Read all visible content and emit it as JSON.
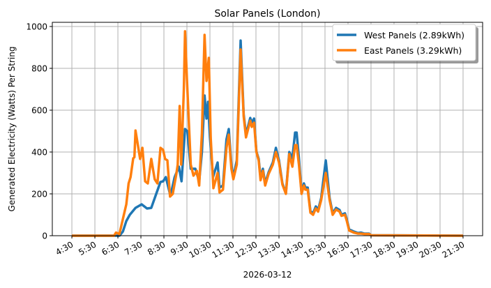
{
  "chart_data": {
    "type": "line",
    "title": "Solar Panels (London)",
    "xlabel": "2026-03-12",
    "ylabel": "Generated Electricity (Watts) Per String",
    "xlim": [
      "03:39",
      "22:21"
    ],
    "ylim": [
      0,
      1020
    ],
    "grid": true,
    "legend_position": "top-right",
    "x_ticks": [
      "4:30",
      "5:30",
      "6:30",
      "7:30",
      "8:30",
      "9:30",
      "10:30",
      "11:30",
      "12:30",
      "13:30",
      "14:30",
      "15:30",
      "16:30",
      "17:30",
      "18:30",
      "19:30",
      "20:30",
      "21:30"
    ],
    "y_ticks": [
      0,
      200,
      400,
      600,
      800,
      1000
    ],
    "series": [
      {
        "name": "West Panels (2.89kWh)",
        "color": "#1f77b4",
        "points": [
          [
            "04:30",
            0
          ],
          [
            "06:34",
            0
          ],
          [
            "06:43",
            20
          ],
          [
            "06:52",
            70
          ],
          [
            "07:01",
            100
          ],
          [
            "07:16",
            133
          ],
          [
            "07:32",
            150
          ],
          [
            "07:46",
            130
          ],
          [
            "07:57",
            133
          ],
          [
            "08:10",
            200
          ],
          [
            "08:21",
            257
          ],
          [
            "08:28",
            260
          ],
          [
            "08:35",
            280
          ],
          [
            "08:47",
            190
          ],
          [
            "08:58",
            280
          ],
          [
            "09:09",
            330
          ],
          [
            "09:16",
            260
          ],
          [
            "09:25",
            510
          ],
          [
            "09:31",
            500
          ],
          [
            "09:40",
            320
          ],
          [
            "09:52",
            320
          ],
          [
            "10:02",
            260
          ],
          [
            "10:09",
            400
          ],
          [
            "10:16",
            670
          ],
          [
            "10:21",
            560
          ],
          [
            "10:25",
            640
          ],
          [
            "10:30",
            470
          ],
          [
            "10:38",
            280
          ],
          [
            "10:50",
            350
          ],
          [
            "10:55",
            230
          ],
          [
            "11:04",
            240
          ],
          [
            "11:13",
            460
          ],
          [
            "11:19",
            510
          ],
          [
            "11:26",
            337
          ],
          [
            "11:31",
            280
          ],
          [
            "11:40",
            360
          ],
          [
            "11:50",
            933
          ],
          [
            "11:58",
            580
          ],
          [
            "12:04",
            483
          ],
          [
            "12:15",
            563
          ],
          [
            "12:19",
            540
          ],
          [
            "12:25",
            560
          ],
          [
            "12:31",
            403
          ],
          [
            "12:37",
            367
          ],
          [
            "12:42",
            277
          ],
          [
            "12:48",
            320
          ],
          [
            "12:54",
            250
          ],
          [
            "13:03",
            303
          ],
          [
            "13:14",
            350
          ],
          [
            "13:22",
            420
          ],
          [
            "13:30",
            360
          ],
          [
            "13:39",
            250
          ],
          [
            "13:48",
            203
          ],
          [
            "13:57",
            400
          ],
          [
            "14:05",
            370
          ],
          [
            "14:12",
            493
          ],
          [
            "14:16",
            493
          ],
          [
            "14:22",
            370
          ],
          [
            "14:29",
            203
          ],
          [
            "14:35",
            250
          ],
          [
            "14:39",
            230
          ],
          [
            "14:45",
            230
          ],
          [
            "14:52",
            117
          ],
          [
            "14:59",
            107
          ],
          [
            "15:06",
            140
          ],
          [
            "15:12",
            123
          ],
          [
            "15:20",
            180
          ],
          [
            "15:32",
            360
          ],
          [
            "15:42",
            180
          ],
          [
            "15:50",
            107
          ],
          [
            "15:59",
            133
          ],
          [
            "16:08",
            123
          ],
          [
            "16:13",
            100
          ],
          [
            "16:22",
            107
          ],
          [
            "16:27",
            77
          ],
          [
            "16:33",
            30
          ],
          [
            "16:45",
            20
          ],
          [
            "16:56",
            13
          ],
          [
            "17:04",
            15
          ],
          [
            "17:13",
            10
          ],
          [
            "17:25",
            10
          ],
          [
            "17:30",
            2
          ],
          [
            "21:30",
            0
          ]
        ]
      },
      {
        "name": "East Panels (3.29kWh)",
        "color": "#ff7f0e",
        "points": [
          [
            "04:30",
            0
          ],
          [
            "06:20",
            0
          ],
          [
            "06:25",
            15
          ],
          [
            "06:34",
            8
          ],
          [
            "06:43",
            80
          ],
          [
            "06:52",
            150
          ],
          [
            "06:58",
            250
          ],
          [
            "07:03",
            280
          ],
          [
            "07:10",
            370
          ],
          [
            "07:13",
            375
          ],
          [
            "07:16",
            503
          ],
          [
            "07:28",
            367
          ],
          [
            "07:34",
            420
          ],
          [
            "07:41",
            260
          ],
          [
            "07:48",
            250
          ],
          [
            "07:57",
            367
          ],
          [
            "08:06",
            270
          ],
          [
            "08:13",
            250
          ],
          [
            "08:21",
            420
          ],
          [
            "08:28",
            410
          ],
          [
            "08:33",
            367
          ],
          [
            "08:39",
            360
          ],
          [
            "08:46",
            187
          ],
          [
            "08:53",
            200
          ],
          [
            "09:02",
            290
          ],
          [
            "09:06",
            340
          ],
          [
            "09:11",
            620
          ],
          [
            "09:15",
            340
          ],
          [
            "09:22",
            700
          ],
          [
            "09:25",
            977
          ],
          [
            "09:30",
            750
          ],
          [
            "09:40",
            340
          ],
          [
            "09:47",
            287
          ],
          [
            "09:56",
            310
          ],
          [
            "10:02",
            240
          ],
          [
            "10:09",
            490
          ],
          [
            "10:16",
            960
          ],
          [
            "10:21",
            740
          ],
          [
            "10:27",
            850
          ],
          [
            "10:32",
            470
          ],
          [
            "10:39",
            227
          ],
          [
            "10:50",
            300
          ],
          [
            "10:55",
            207
          ],
          [
            "11:04",
            220
          ],
          [
            "11:13",
            420
          ],
          [
            "11:19",
            483
          ],
          [
            "11:26",
            320
          ],
          [
            "11:31",
            270
          ],
          [
            "11:40",
            340
          ],
          [
            "11:50",
            890
          ],
          [
            "11:58",
            570
          ],
          [
            "12:04",
            470
          ],
          [
            "12:15",
            550
          ],
          [
            "12:19",
            520
          ],
          [
            "12:25",
            540
          ],
          [
            "12:31",
            400
          ],
          [
            "12:37",
            360
          ],
          [
            "12:42",
            265
          ],
          [
            "12:48",
            310
          ],
          [
            "12:54",
            240
          ],
          [
            "13:03",
            295
          ],
          [
            "13:14",
            340
          ],
          [
            "13:22",
            400
          ],
          [
            "13:30",
            350
          ],
          [
            "13:39",
            245
          ],
          [
            "13:48",
            200
          ],
          [
            "13:57",
            390
          ],
          [
            "14:05",
            330
          ],
          [
            "14:12",
            433
          ],
          [
            "14:16",
            433
          ],
          [
            "14:22",
            340
          ],
          [
            "14:29",
            200
          ],
          [
            "14:35",
            240
          ],
          [
            "14:39",
            220
          ],
          [
            "14:45",
            220
          ],
          [
            "14:52",
            110
          ],
          [
            "14:59",
            100
          ],
          [
            "15:06",
            130
          ],
          [
            "15:12",
            115
          ],
          [
            "15:20",
            170
          ],
          [
            "15:32",
            300
          ],
          [
            "15:42",
            170
          ],
          [
            "15:50",
            100
          ],
          [
            "15:59",
            125
          ],
          [
            "16:08",
            115
          ],
          [
            "16:13",
            95
          ],
          [
            "16:22",
            100
          ],
          [
            "16:27",
            70
          ],
          [
            "16:33",
            25
          ],
          [
            "16:45",
            15
          ],
          [
            "16:56",
            10
          ],
          [
            "17:04",
            10
          ],
          [
            "17:13",
            8
          ],
          [
            "17:25",
            8
          ],
          [
            "17:30",
            2
          ],
          [
            "21:30",
            0
          ]
        ]
      }
    ]
  }
}
